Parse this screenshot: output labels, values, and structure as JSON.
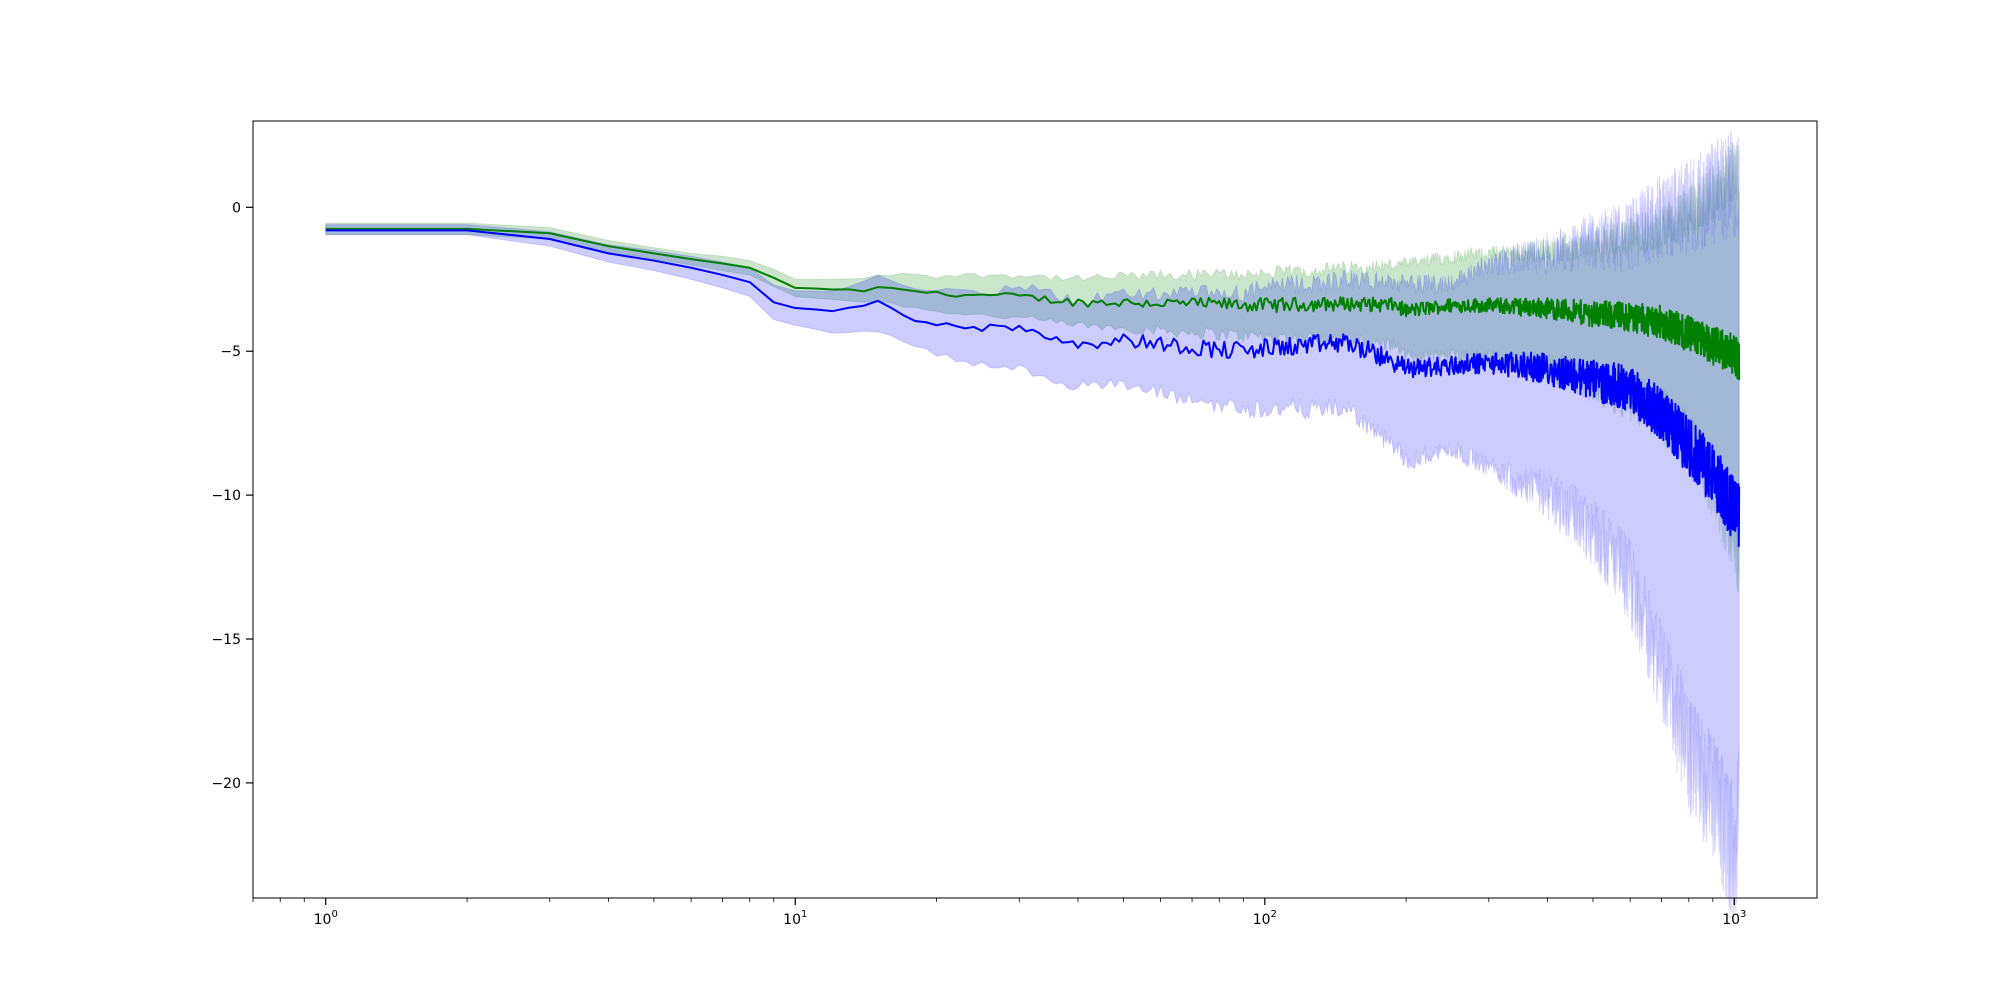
{
  "chart_data": {
    "type": "line",
    "title": "",
    "xlabel": "",
    "ylabel": "",
    "xscale": "log",
    "xlim": [
      0.7,
      1500
    ],
    "ylim": [
      -24,
      3
    ],
    "grid": false,
    "legend": "none",
    "x_ticks": [
      {
        "value": 1,
        "base": "10",
        "exp": "0"
      },
      {
        "value": 10,
        "base": "10",
        "exp": "1"
      },
      {
        "value": 100,
        "base": "10",
        "exp": "2"
      },
      {
        "value": 1000,
        "base": "10",
        "exp": "3"
      }
    ],
    "y_ticks": [
      {
        "value": 0,
        "label": "0"
      },
      {
        "value": -5,
        "label": "−5"
      },
      {
        "value": -10,
        "label": "−10"
      },
      {
        "value": -15,
        "label": "−15"
      },
      {
        "value": -20,
        "label": "−20"
      }
    ],
    "x_max": 1024,
    "series": [
      {
        "color": "#008000",
        "band_color": "#008000",
        "band_opacity": 0.2,
        "mean": [
          [
            1,
            -0.75
          ],
          [
            2,
            -0.75
          ],
          [
            3,
            -0.9
          ],
          [
            4,
            -1.35
          ],
          [
            5,
            -1.6
          ],
          [
            6,
            -1.8
          ],
          [
            7,
            -1.95
          ],
          [
            8,
            -2.1
          ],
          [
            9,
            -2.45
          ],
          [
            10,
            -2.8
          ],
          [
            12,
            -2.85
          ],
          [
            14,
            -2.9
          ],
          [
            15,
            -2.8
          ],
          [
            18,
            -2.9
          ],
          [
            20,
            -3.0
          ],
          [
            25,
            -3.05
          ],
          [
            30,
            -3.1
          ],
          [
            40,
            -3.3
          ],
          [
            50,
            -3.3
          ],
          [
            70,
            -3.35
          ],
          [
            100,
            -3.4
          ],
          [
            150,
            -3.35
          ],
          [
            190,
            -3.4
          ],
          [
            200,
            -3.6
          ],
          [
            250,
            -3.4
          ],
          [
            300,
            -3.4
          ],
          [
            400,
            -3.5
          ],
          [
            500,
            -3.7
          ],
          [
            600,
            -3.8
          ],
          [
            700,
            -4.0
          ],
          [
            800,
            -4.4
          ],
          [
            900,
            -4.8
          ],
          [
            1000,
            -5.1
          ],
          [
            1024,
            -5.3
          ]
        ],
        "lower": [
          [
            1,
            -0.95
          ],
          [
            2,
            -0.95
          ],
          [
            3,
            -1.1
          ],
          [
            4,
            -1.55
          ],
          [
            5,
            -1.8
          ],
          [
            6,
            -2.0
          ],
          [
            7,
            -2.2
          ],
          [
            8,
            -2.35
          ],
          [
            9,
            -2.75
          ],
          [
            10,
            -3.1
          ],
          [
            12,
            -3.2
          ],
          [
            14,
            -3.3
          ],
          [
            15,
            -3.25
          ],
          [
            18,
            -3.5
          ],
          [
            20,
            -3.6
          ],
          [
            25,
            -3.75
          ],
          [
            30,
            -3.85
          ],
          [
            40,
            -4.1
          ],
          [
            50,
            -4.2
          ],
          [
            70,
            -4.35
          ],
          [
            100,
            -4.5
          ],
          [
            150,
            -4.6
          ],
          [
            190,
            -4.8
          ],
          [
            200,
            -5.2
          ],
          [
            250,
            -5.1
          ],
          [
            300,
            -5.2
          ],
          [
            400,
            -5.5
          ],
          [
            500,
            -6.1
          ],
          [
            600,
            -6.6
          ],
          [
            700,
            -7.2
          ],
          [
            800,
            -8.2
          ],
          [
            900,
            -9.6
          ],
          [
            1000,
            -11.5
          ],
          [
            1024,
            -12.5
          ]
        ],
        "upper": [
          [
            1,
            -0.55
          ],
          [
            2,
            -0.55
          ],
          [
            3,
            -0.7
          ],
          [
            4,
            -1.15
          ],
          [
            5,
            -1.4
          ],
          [
            6,
            -1.6
          ],
          [
            7,
            -1.7
          ],
          [
            8,
            -1.85
          ],
          [
            9,
            -2.15
          ],
          [
            10,
            -2.5
          ],
          [
            12,
            -2.5
          ],
          [
            14,
            -2.5
          ],
          [
            15,
            -2.35
          ],
          [
            18,
            -2.3
          ],
          [
            20,
            -2.4
          ],
          [
            25,
            -2.35
          ],
          [
            30,
            -2.35
          ],
          [
            40,
            -2.5
          ],
          [
            50,
            -2.4
          ],
          [
            70,
            -2.35
          ],
          [
            100,
            -2.3
          ],
          [
            150,
            -2.1
          ],
          [
            190,
            -2.0
          ],
          [
            200,
            -2.0
          ],
          [
            250,
            -1.7
          ],
          [
            300,
            -1.6
          ],
          [
            400,
            -1.5
          ],
          [
            500,
            -1.3
          ],
          [
            600,
            -1.0
          ],
          [
            700,
            -0.8
          ],
          [
            800,
            -0.2
          ],
          [
            900,
            0.5
          ],
          [
            1000,
            1.3
          ],
          [
            1024,
            1.2
          ]
        ]
      },
      {
        "color": "#0000ff",
        "band_color": "#0000ff",
        "band_opacity": 0.2,
        "mean": [
          [
            1,
            -0.8
          ],
          [
            2,
            -0.8
          ],
          [
            3,
            -1.1
          ],
          [
            4,
            -1.6
          ],
          [
            5,
            -1.85
          ],
          [
            6,
            -2.1
          ],
          [
            7,
            -2.35
          ],
          [
            8,
            -2.6
          ],
          [
            9,
            -3.3
          ],
          [
            10,
            -3.5
          ],
          [
            12,
            -3.6
          ],
          [
            14,
            -3.4
          ],
          [
            15,
            -3.3
          ],
          [
            18,
            -3.9
          ],
          [
            20,
            -4.0
          ],
          [
            25,
            -4.2
          ],
          [
            30,
            -4.15
          ],
          [
            40,
            -4.75
          ],
          [
            50,
            -4.6
          ],
          [
            70,
            -4.85
          ],
          [
            90,
            -5.0
          ],
          [
            100,
            -4.9
          ],
          [
            150,
            -4.7
          ],
          [
            190,
            -5.4
          ],
          [
            200,
            -5.6
          ],
          [
            250,
            -5.5
          ],
          [
            300,
            -5.4
          ],
          [
            400,
            -5.6
          ],
          [
            500,
            -6.0
          ],
          [
            600,
            -6.3
          ],
          [
            700,
            -7.2
          ],
          [
            800,
            -8.3
          ],
          [
            900,
            -9.3
          ],
          [
            1000,
            -10.5
          ],
          [
            1024,
            -10.8
          ]
        ],
        "lower": [
          [
            1,
            -0.95
          ],
          [
            2,
            -0.95
          ],
          [
            3,
            -1.35
          ],
          [
            4,
            -1.9
          ],
          [
            5,
            -2.2
          ],
          [
            6,
            -2.5
          ],
          [
            7,
            -2.8
          ],
          [
            8,
            -3.1
          ],
          [
            9,
            -3.9
          ],
          [
            10,
            -4.1
          ],
          [
            12,
            -4.35
          ],
          [
            14,
            -4.3
          ],
          [
            15,
            -4.3
          ],
          [
            18,
            -4.9
          ],
          [
            20,
            -5.1
          ],
          [
            25,
            -5.5
          ],
          [
            30,
            -5.6
          ],
          [
            40,
            -6.2
          ],
          [
            50,
            -6.2
          ],
          [
            70,
            -6.7
          ],
          [
            90,
            -7.0
          ],
          [
            100,
            -7.0
          ],
          [
            150,
            -7.0
          ],
          [
            190,
            -8.4
          ],
          [
            200,
            -8.8
          ],
          [
            250,
            -8.4
          ],
          [
            300,
            -9.0
          ],
          [
            400,
            -10.0
          ],
          [
            500,
            -11.2
          ],
          [
            600,
            -13.0
          ],
          [
            700,
            -16.0
          ],
          [
            800,
            -19.0
          ],
          [
            900,
            -20.5
          ],
          [
            1000,
            -22.5
          ],
          [
            1024,
            -21.0
          ]
        ],
        "upper": [
          [
            1,
            -0.6
          ],
          [
            2,
            -0.6
          ],
          [
            3,
            -0.85
          ],
          [
            4,
            -1.3
          ],
          [
            5,
            -1.5
          ],
          [
            6,
            -1.7
          ],
          [
            7,
            -1.9
          ],
          [
            8,
            -2.1
          ],
          [
            9,
            -2.7
          ],
          [
            10,
            -2.9
          ],
          [
            12,
            -2.9
          ],
          [
            14,
            -2.6
          ],
          [
            15,
            -2.4
          ],
          [
            18,
            -2.9
          ],
          [
            20,
            -2.9
          ],
          [
            25,
            -3.0
          ],
          [
            30,
            -2.7
          ],
          [
            40,
            -3.3
          ],
          [
            50,
            -3.0
          ],
          [
            70,
            -3.0
          ],
          [
            90,
            -3.0
          ],
          [
            100,
            -2.8
          ],
          [
            150,
            -2.5
          ],
          [
            190,
            -2.6
          ],
          [
            200,
            -2.7
          ],
          [
            250,
            -2.6
          ],
          [
            300,
            -2.0
          ],
          [
            400,
            -1.6
          ],
          [
            500,
            -1.2
          ],
          [
            600,
            -1.0
          ],
          [
            700,
            -0.3
          ],
          [
            800,
            0.0
          ],
          [
            900,
            0.5
          ],
          [
            1000,
            0.9
          ],
          [
            1024,
            0.7
          ]
        ]
      }
    ]
  }
}
